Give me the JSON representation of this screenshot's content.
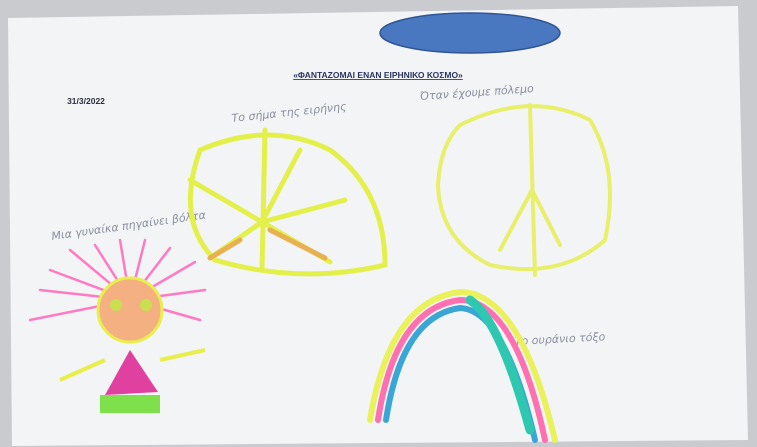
{
  "header": {
    "title": "«ΦΑΝΤΑΖΟΜΑΙ ΕΝΑΝ ΕΙΡΗΝΙΚΟ ΚΟΣΜΟ»",
    "date": "31/3/2022"
  },
  "captions": [
    "Το σήμα της ειρήνης",
    "Όταν έχουμε πόλεμο",
    "Μια γυναίκα πηγαίνει βόλτα",
    "Το ουράνιο τόξο"
  ]
}
